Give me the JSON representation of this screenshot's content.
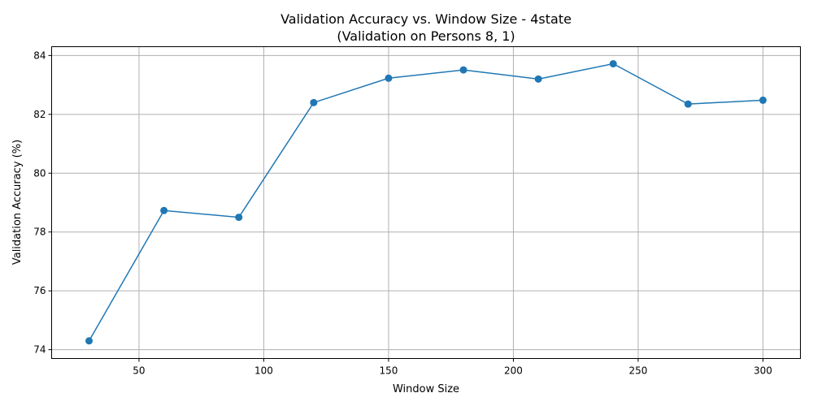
{
  "chart_data": {
    "type": "line",
    "title": "Validation Accuracy vs. Window Size - 4state",
    "subtitle": "(Validation on Persons 8, 1)",
    "xlabel": "Window Size",
    "ylabel": "Validation Accuracy (%)",
    "xlim": [
      15,
      315
    ],
    "ylim": [
      73.7,
      84.3
    ],
    "xticks": [
      50,
      100,
      150,
      200,
      250,
      300
    ],
    "yticks": [
      74,
      76,
      78,
      80,
      82,
      84
    ],
    "grid": true,
    "marker": "circle",
    "color": "#1f77b4",
    "series": [
      {
        "x": [
          30,
          60,
          90,
          120,
          150,
          180,
          210,
          240,
          270,
          300
        ],
        "values": [
          74.3,
          78.73,
          78.5,
          82.4,
          83.23,
          83.51,
          83.2,
          83.72,
          82.35,
          82.48
        ]
      }
    ]
  }
}
